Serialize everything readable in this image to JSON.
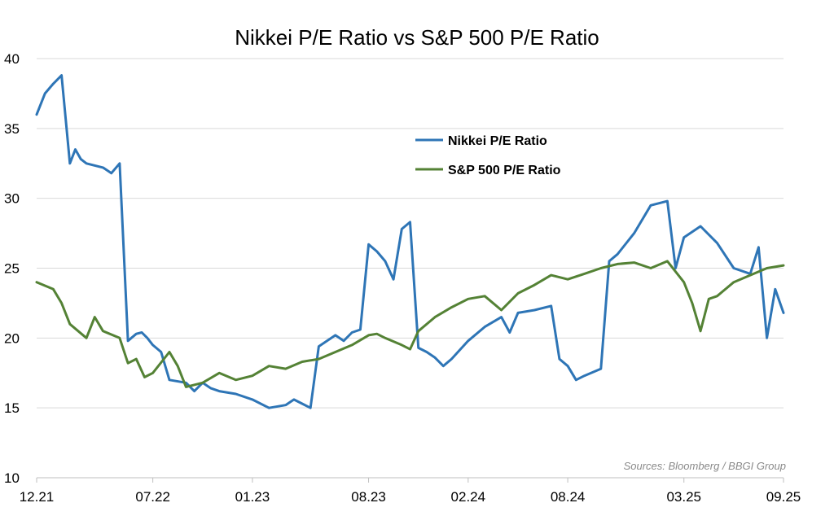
{
  "chart_data": {
    "type": "line",
    "title": "Nikkei P/E Ratio vs S&P 500 P/E Ratio",
    "xlabel": "",
    "ylabel": "",
    "x_tick_labels": [
      "12.21",
      "07.22",
      "01.23",
      "08.23",
      "02.24",
      "08.24",
      "03.25",
      "09.25"
    ],
    "x_tick_dates": [
      "2021-12",
      "2022-07",
      "2023-01",
      "2023-08",
      "2024-02",
      "2024-08",
      "2025-03",
      "2025-09"
    ],
    "y_ticks": [
      10,
      15,
      20,
      25,
      30,
      35,
      40
    ],
    "ylim": [
      10,
      40
    ],
    "xlim": [
      "2021-12",
      "2025-09"
    ],
    "grid": "horizontal",
    "legend_position": "upper-center",
    "source_note": "Sources: Bloomberg / BBGI Group",
    "series": [
      {
        "name": "Nikkei  P/E Ratio",
        "color": "#2e75b6",
        "x": [
          "2021-12",
          "2021-12",
          "2022-01",
          "2022-01",
          "2022-02",
          "2022-02",
          "2022-02",
          "2022-03",
          "2022-04",
          "2022-04",
          "2022-05",
          "2022-05",
          "2022-06",
          "2022-06",
          "2022-06",
          "2022-07",
          "2022-07",
          "2022-08",
          "2022-09",
          "2022-09",
          "2022-10",
          "2022-10",
          "2022-11",
          "2022-12",
          "2023-01",
          "2023-02",
          "2023-03",
          "2023-03",
          "2023-04",
          "2023-04",
          "2023-05",
          "2023-05",
          "2023-06",
          "2023-06",
          "2023-07",
          "2023-07",
          "2023-08",
          "2023-08",
          "2023-09",
          "2023-09",
          "2023-10",
          "2023-10",
          "2023-11",
          "2023-11",
          "2023-12",
          "2023-12",
          "2024-01",
          "2024-02",
          "2024-03",
          "2024-04",
          "2024-04",
          "2024-05",
          "2024-06",
          "2024-07",
          "2024-07",
          "2024-08",
          "2024-08",
          "2024-09",
          "2024-10",
          "2024-10",
          "2024-11",
          "2024-12",
          "2025-01",
          "2025-02",
          "2025-02",
          "2025-03",
          "2025-04",
          "2025-05",
          "2025-06",
          "2025-07",
          "2025-07",
          "2025-08",
          "2025-08",
          "2025-09"
        ],
        "values": [
          36.0,
          37.5,
          38.2,
          38.8,
          32.5,
          33.5,
          32.8,
          32.5,
          32.2,
          31.8,
          32.5,
          19.8,
          20.3,
          20.4,
          20.0,
          19.5,
          19.0,
          17.0,
          16.8,
          16.2,
          16.8,
          16.4,
          16.2,
          16.0,
          15.6,
          15.0,
          15.2,
          15.6,
          15.3,
          15.0,
          19.4,
          19.8,
          20.2,
          19.8,
          20.4,
          20.6,
          26.7,
          26.2,
          25.5,
          24.2,
          27.8,
          28.3,
          19.3,
          19.0,
          18.6,
          18.0,
          18.5,
          19.8,
          20.8,
          21.5,
          20.4,
          21.8,
          22.0,
          22.3,
          18.5,
          18.0,
          17.0,
          17.3,
          17.8,
          25.5,
          26.0,
          27.5,
          29.5,
          29.8,
          25.0,
          27.2,
          28.0,
          26.8,
          25.0,
          24.6,
          26.5,
          20.0,
          23.5,
          21.8
        ]
      },
      {
        "name": "S&P 500 P/E Ratio",
        "color": "#548235",
        "x": [
          "2021-12",
          "2022-01",
          "2022-01",
          "2022-02",
          "2022-03",
          "2022-03",
          "2022-04",
          "2022-05",
          "2022-05",
          "2022-06",
          "2022-06",
          "2022-07",
          "2022-08",
          "2022-08",
          "2022-09",
          "2022-10",
          "2022-11",
          "2022-12",
          "2023-01",
          "2023-02",
          "2023-03",
          "2023-04",
          "2023-05",
          "2023-06",
          "2023-07",
          "2023-08",
          "2023-08",
          "2023-09",
          "2023-10",
          "2023-10",
          "2023-11",
          "2023-12",
          "2024-01",
          "2024-02",
          "2024-03",
          "2024-04",
          "2024-05",
          "2024-06",
          "2024-07",
          "2024-08",
          "2024-09",
          "2024-10",
          "2024-11",
          "2024-12",
          "2025-01",
          "2025-02",
          "2025-03",
          "2025-03",
          "2025-04",
          "2025-04",
          "2025-05",
          "2025-06",
          "2025-07",
          "2025-08",
          "2025-09"
        ],
        "values": [
          24.0,
          23.5,
          22.5,
          21.0,
          20.0,
          21.5,
          20.5,
          20.0,
          18.2,
          18.5,
          17.2,
          17.5,
          19.0,
          18.0,
          16.5,
          16.8,
          17.5,
          17.0,
          17.3,
          18.0,
          17.8,
          18.3,
          18.5,
          19.0,
          19.5,
          20.2,
          20.3,
          20.0,
          19.5,
          19.2,
          20.5,
          21.5,
          22.2,
          22.8,
          23.0,
          22.0,
          23.2,
          23.8,
          24.5,
          24.2,
          24.6,
          25.0,
          25.3,
          25.4,
          25.0,
          25.5,
          24.0,
          22.5,
          20.5,
          22.8,
          23.0,
          24.0,
          24.5,
          25.0,
          25.2
        ]
      }
    ]
  }
}
